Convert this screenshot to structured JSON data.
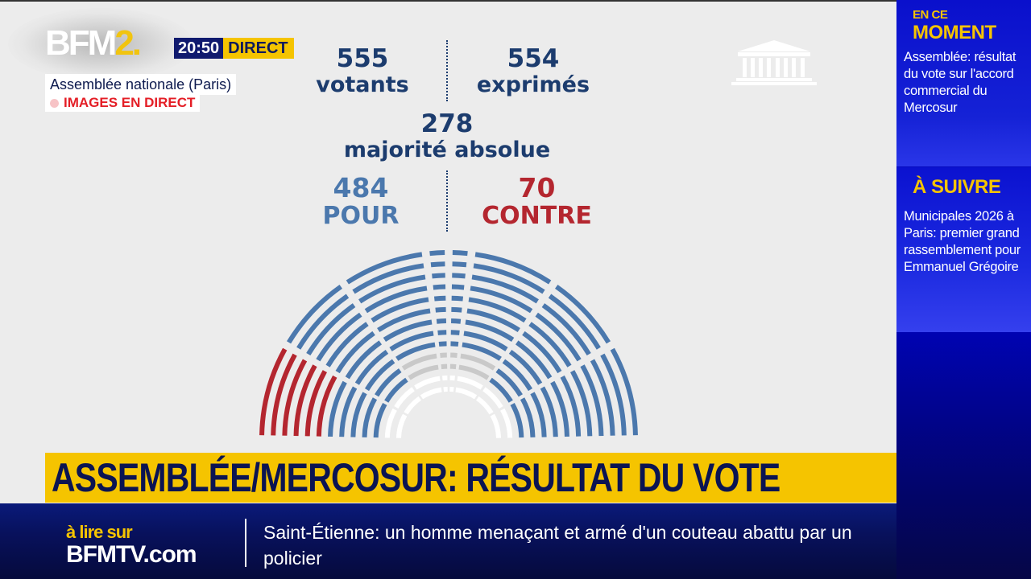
{
  "channel": {
    "logo_main": "BFM",
    "logo_suffix": "2.",
    "time": "20:50",
    "live_badge": "DIRECT",
    "location": "Assemblée nationale (Paris)",
    "live_label": "IMAGES EN DIRECT"
  },
  "vote": {
    "votants": {
      "value": "555",
      "label": "votants"
    },
    "exprimes": {
      "value": "554",
      "label": "exprimés"
    },
    "majorite": {
      "value": "278",
      "label": "majorité absolue"
    },
    "pour": {
      "value": "484",
      "label": "POUR"
    },
    "contre": {
      "value": "70",
      "label": "CONTRE"
    },
    "colors": {
      "pour": "#4b78ad",
      "contre": "#b4262f",
      "absent": "#c9c9c9",
      "empty": "#ffffff",
      "text": "#1c3c6e"
    }
  },
  "icons": {
    "building": "assemblee-building-icon"
  },
  "headline": {
    "text": "ASSEMBLÉE/MERCOSUR: RÉSULTAT DU VOTE"
  },
  "ticker": {
    "source_top": "à lire sur",
    "source_bottom": "BFMTV.com",
    "story": "Saint-Étienne: un homme menaçant et armé d'un couteau abattu par un policier"
  },
  "sidebar": {
    "now": {
      "kicker_small": "EN CE",
      "kicker_large": "MOMENT",
      "text": "Assemblée: résultat du vote sur l'accord commercial du Mercosur"
    },
    "next": {
      "kicker": "À SUIVRE",
      "text": "Municipales 2026 à Paris: premier grand rassemblement pour Emmanuel Grégoire"
    }
  }
}
